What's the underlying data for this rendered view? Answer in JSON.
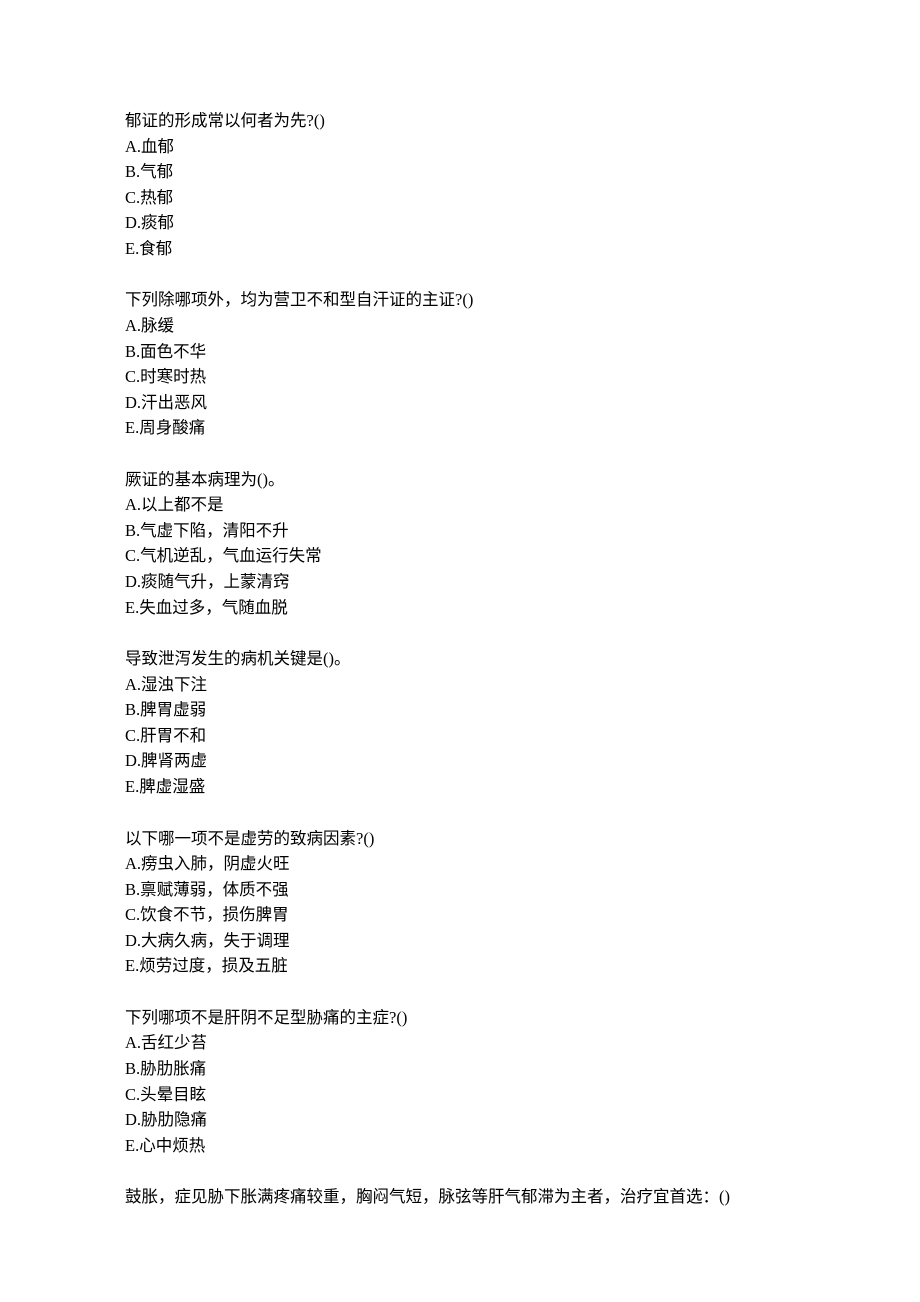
{
  "questions": [
    {
      "stem": "郁证的形成常以何者为先?()",
      "options": [
        {
          "label": "A",
          "text": "血郁"
        },
        {
          "label": "B",
          "text": "气郁"
        },
        {
          "label": "C",
          "text": "热郁"
        },
        {
          "label": "D",
          "text": "痰郁"
        },
        {
          "label": "E",
          "text": "食郁"
        }
      ]
    },
    {
      "stem": "下列除哪项外，均为营卫不和型自汗证的主证?()",
      "options": [
        {
          "label": "A",
          "text": "脉缓"
        },
        {
          "label": "B",
          "text": "面色不华"
        },
        {
          "label": "C",
          "text": "时寒时热"
        },
        {
          "label": "D",
          "text": "汗出恶风"
        },
        {
          "label": "E",
          "text": "周身酸痛"
        }
      ]
    },
    {
      "stem": "厥证的基本病理为()。",
      "options": [
        {
          "label": "A",
          "text": "以上都不是"
        },
        {
          "label": "B",
          "text": "气虚下陷，清阳不升"
        },
        {
          "label": "C",
          "text": "气机逆乱，气血运行失常"
        },
        {
          "label": "D",
          "text": "痰随气升，上蒙清窍"
        },
        {
          "label": "E",
          "text": "失血过多，气随血脱"
        }
      ]
    },
    {
      "stem": "导致泄泻发生的病机关键是()。",
      "options": [
        {
          "label": "A",
          "text": "湿浊下注"
        },
        {
          "label": "B",
          "text": "脾胃虚弱"
        },
        {
          "label": "C",
          "text": "肝胃不和"
        },
        {
          "label": "D",
          "text": "脾肾两虚"
        },
        {
          "label": "E",
          "text": "脾虚湿盛"
        }
      ]
    },
    {
      "stem": "以下哪一项不是虚劳的致病因素?()",
      "options": [
        {
          "label": "A",
          "text": "痨虫入肺，阴虚火旺"
        },
        {
          "label": "B",
          "text": "禀赋薄弱，体质不强"
        },
        {
          "label": "C",
          "text": "饮食不节，损伤脾胃"
        },
        {
          "label": "D",
          "text": "大病久病，失于调理"
        },
        {
          "label": "E",
          "text": "烦劳过度，损及五脏"
        }
      ]
    },
    {
      "stem": "下列哪项不是肝阴不足型胁痛的主症?()",
      "options": [
        {
          "label": "A",
          "text": "舌红少苔"
        },
        {
          "label": "B",
          "text": "胁肋胀痛"
        },
        {
          "label": "C",
          "text": "头晕目眩"
        },
        {
          "label": "D",
          "text": "胁肋隐痛"
        },
        {
          "label": "E",
          "text": "心中烦热"
        }
      ]
    },
    {
      "stem": "鼓胀，症见胁下胀满疼痛较重，胸闷气短，脉弦等肝气郁滞为主者，治疗宜首选：()",
      "options": []
    }
  ]
}
